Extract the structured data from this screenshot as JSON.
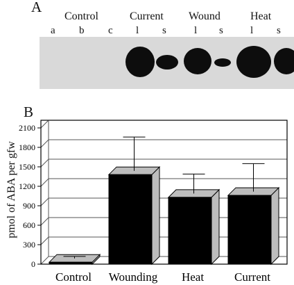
{
  "panel_a": {
    "label": "A",
    "groups": [
      "Control",
      "Current",
      "Wound",
      "Heat"
    ],
    "lanes": [
      "a",
      "b",
      "c",
      "l",
      "s",
      "l",
      "s",
      "l",
      "s"
    ]
  },
  "panel_b": {
    "label": "B"
  },
  "colors": {
    "bar_face": "#000000",
    "bar_side": "#bdbdbd",
    "grid": "#555555",
    "blot_bg": "#d9d9d9"
  },
  "chart_data": {
    "type": "bar",
    "categories": [
      "Control",
      "Wounding",
      "Heat",
      "Current"
    ],
    "values": [
      30,
      1380,
      1030,
      1060
    ],
    "error": [
      30,
      520,
      300,
      430
    ],
    "ylabel": "pmol of ABA per gfw",
    "xlabel": "",
    "yticks": [
      0,
      300,
      600,
      900,
      1200,
      1500,
      1800,
      2100
    ],
    "ylim": [
      0,
      2100
    ],
    "grid": true,
    "style": "3d"
  }
}
